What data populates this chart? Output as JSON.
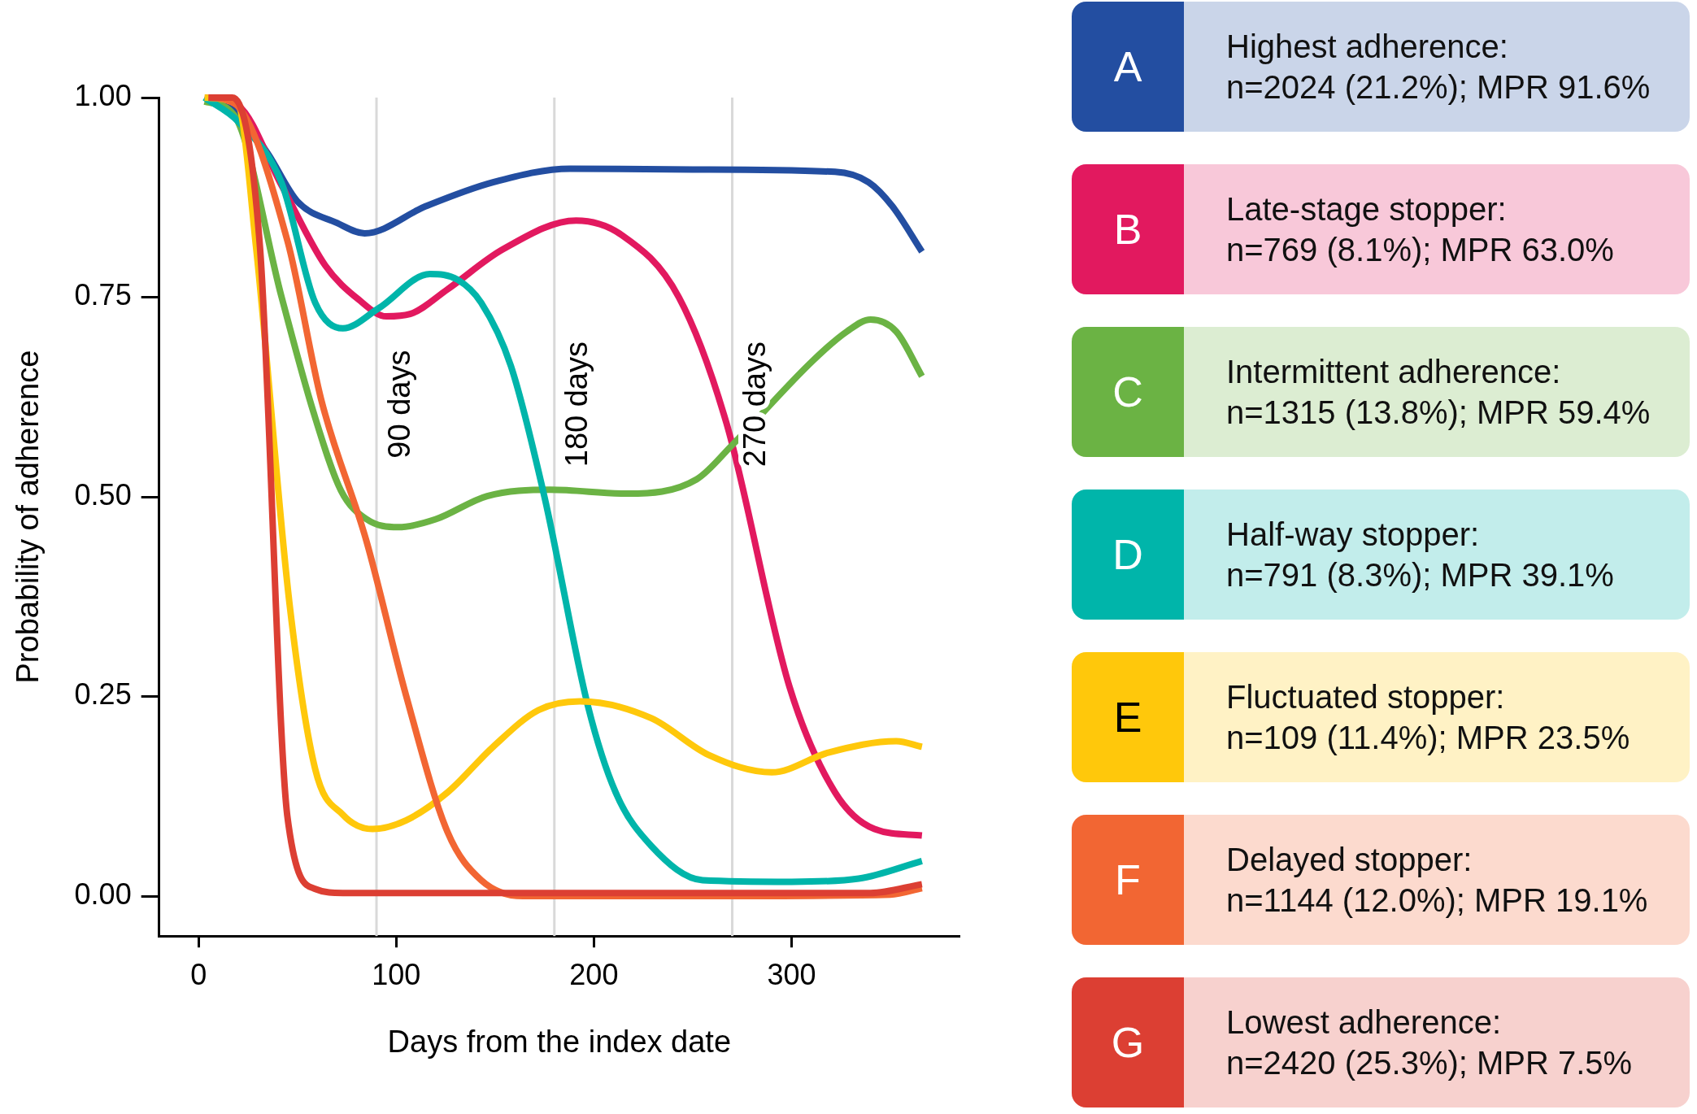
{
  "chart_data": {
    "type": "line",
    "xlabel": "Days from the index date",
    "ylabel": "Probability of adherence",
    "xlim": [
      -20,
      385
    ],
    "ylim": [
      -0.05,
      1.0
    ],
    "xticks": [
      0,
      100,
      200,
      300
    ],
    "yticks": [
      {
        "value": 0,
        "label": "0.00"
      },
      {
        "value": 0.25,
        "label": "0.25"
      },
      {
        "value": 0.5,
        "label": "0.50"
      },
      {
        "value": 0.75,
        "label": "0.75"
      },
      {
        "value": 1,
        "label": "1.00"
      }
    ],
    "grid": false,
    "legend": "right",
    "marker": "none",
    "line_style": "solid",
    "ref_lines": [
      {
        "axis": "x",
        "value": 90,
        "label": "90 days",
        "color": "#d9d9d9"
      },
      {
        "axis": "x",
        "value": 180,
        "label": "180 days",
        "color": "#d9d9d9"
      },
      {
        "axis": "x",
        "value": 270,
        "label": "270 days",
        "color": "#d9d9d9"
      }
    ],
    "series": [
      {
        "name": "A\nHighest adherence:\nn=2024 (21.2%); MPR 91.6%",
        "color": "#234ea1",
        "x": [
          3,
          20,
          35,
          50,
          70,
          84,
          115,
          149,
          188,
          250,
          322,
          339,
          351,
          366
        ],
        "values": [
          1.0,
          0.98,
          0.93,
          0.87,
          0.843,
          0.83,
          0.864,
          0.894,
          0.911,
          0.91,
          0.907,
          0.894,
          0.864,
          0.807
        ]
      },
      {
        "name": "B\nLate-stage stopper:\nn=769 (8.1%); MPR 63.0%",
        "color": "#e2195f",
        "x": [
          3,
          20,
          42,
          64,
          81,
          95,
          107,
          126,
          154,
          191,
          214,
          243,
          267,
          299,
          322,
          342,
          366
        ],
        "values": [
          1.0,
          0.99,
          0.89,
          0.79,
          0.747,
          0.726,
          0.729,
          0.76,
          0.81,
          0.846,
          0.828,
          0.75,
          0.593,
          0.262,
          0.13,
          0.084,
          0.076
        ]
      },
      {
        "name": "C\nIntermittent adherence:\nn=1315 (13.8%); MPR 59.4%",
        "color": "#6bb344",
        "x": [
          3,
          18,
          42,
          58,
          72,
          85,
          101,
          120,
          146,
          178,
          217,
          252,
          270,
          311,
          328,
          340,
          353,
          366
        ],
        "values": [
          0.995,
          0.978,
          0.75,
          0.607,
          0.508,
          0.472,
          0.462,
          0.472,
          0.501,
          0.509,
          0.504,
          0.522,
          0.565,
          0.671,
          0.707,
          0.722,
          0.707,
          0.651
        ]
      },
      {
        "name": "D\nHalf-way stopper:\nn=791 (8.3%); MPR 39.1%",
        "color": "#00b5aa",
        "x": [
          3,
          20,
          42,
          59,
          73,
          91,
          117,
          131,
          143,
          158,
          175,
          197,
          211,
          229,
          255,
          300,
          334,
          366
        ],
        "values": [
          1.0,
          0.97,
          0.893,
          0.743,
          0.711,
          0.736,
          0.779,
          0.772,
          0.743,
          0.664,
          0.5,
          0.238,
          0.13,
          0.063,
          0.02,
          0.018,
          0.022,
          0.044
        ]
      },
      {
        "name": "E\nFluctuated stopper:\nn=109 (11.4%); MPR 23.5%",
        "color": "#ffc80b",
        "x": [
          3,
          20,
          29,
          46,
          59,
          73,
          88,
          105,
          126,
          149,
          172,
          193,
          229,
          258,
          290,
          319,
          353,
          366
        ],
        "values": [
          1.0,
          0.99,
          0.814,
          0.366,
          0.159,
          0.102,
          0.084,
          0.095,
          0.13,
          0.187,
          0.233,
          0.244,
          0.223,
          0.177,
          0.155,
          0.18,
          0.194,
          0.187
        ]
      },
      {
        "name": "F\nDelayed stopper:\nn=1144 (12.0%); MPR 19.1%",
        "color": "#f26633",
        "x": [
          5,
          18,
          45,
          62,
          85,
          105,
          126,
          143,
          164,
          250,
          350,
          366
        ],
        "values": [
          1.0,
          0.993,
          0.82,
          0.622,
          0.444,
          0.251,
          0.08,
          0.02,
          0.0,
          0.0,
          0.002,
          0.01
        ]
      },
      {
        "name": "G\nLowest adherence:\nn=2420 (25.3%); MPR 7.5%",
        "color": "#dc3f33",
        "x": [
          5,
          17,
          31,
          45,
          59,
          73,
          200,
          340,
          366
        ],
        "values": [
          1.0,
          1.0,
          0.814,
          0.098,
          0.009,
          0.004,
          0.004,
          0.004,
          0.015
        ]
      }
    ]
  }
}
